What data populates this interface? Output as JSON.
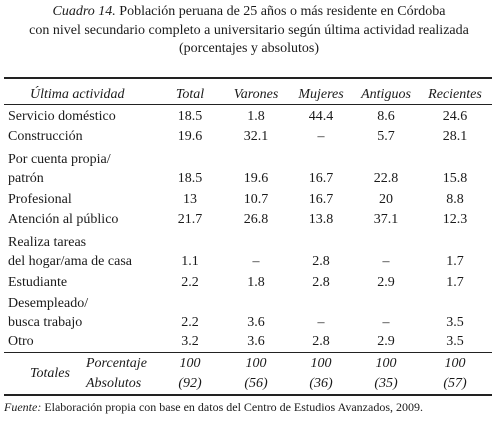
{
  "title": {
    "label": "Cuadro 14.",
    "lines": [
      "Población peruana de 25 años o más residente en Córdoba",
      "con nivel secundario completo a universitario según última actividad realizada",
      "(porcentajes y absolutos)"
    ]
  },
  "table": {
    "header": [
      "Última actividad",
      "Total",
      "Varones",
      "Mujeres",
      "Antiguos",
      "Recientes"
    ],
    "rows": [
      {
        "label": [
          "Servicio doméstico"
        ],
        "values": [
          "18.5",
          "1.8",
          "44.4",
          "8.6",
          "24.6"
        ]
      },
      {
        "label": [
          "Construcción"
        ],
        "values": [
          "19.6",
          "32.1",
          "–",
          "5.7",
          "28.1"
        ]
      },
      {
        "label": [
          "Por cuenta propia/",
          "patrón"
        ],
        "values": [
          "18.5",
          "19.6",
          "16.7",
          "22.8",
          "15.8"
        ]
      },
      {
        "label": [
          "Profesional"
        ],
        "values": [
          "13",
          "10.7",
          "16.7",
          "20",
          "8.8"
        ]
      },
      {
        "label": [
          "Atención al público"
        ],
        "values": [
          "21.7",
          "26.8",
          "13.8",
          "37.1",
          "12.3"
        ]
      },
      {
        "label": [
          "Realiza tareas",
          "del hogar/ama de casa"
        ],
        "values": [
          "1.1",
          "–",
          "2.8",
          "–",
          "1.7"
        ]
      },
      {
        "label": [
          "Estudiante"
        ],
        "values": [
          "2.2",
          "1.8",
          "2.8",
          "2.9",
          "1.7"
        ]
      },
      {
        "label": [
          "Desempleado/",
          "busca trabajo"
        ],
        "values": [
          "2.2",
          "3.6",
          "–",
          "–",
          "3.5"
        ]
      },
      {
        "label": [
          "Otro"
        ],
        "values": [
          "3.2",
          "3.6",
          "2.8",
          "2.9",
          "3.5"
        ]
      }
    ],
    "totals": {
      "label": "Totales",
      "rows": [
        {
          "label": "Porcentaje",
          "values": [
            "100",
            "100",
            "100",
            "100",
            "100"
          ]
        },
        {
          "label": "Absolutos",
          "values": [
            "(92)",
            "(56)",
            "(36)",
            "(35)",
            "(57)"
          ]
        }
      ]
    }
  },
  "footer": {
    "label": "Fuente:",
    "text": "Elaboración propia con base en datos del Centro de Estudios Avanzados, 2009."
  }
}
